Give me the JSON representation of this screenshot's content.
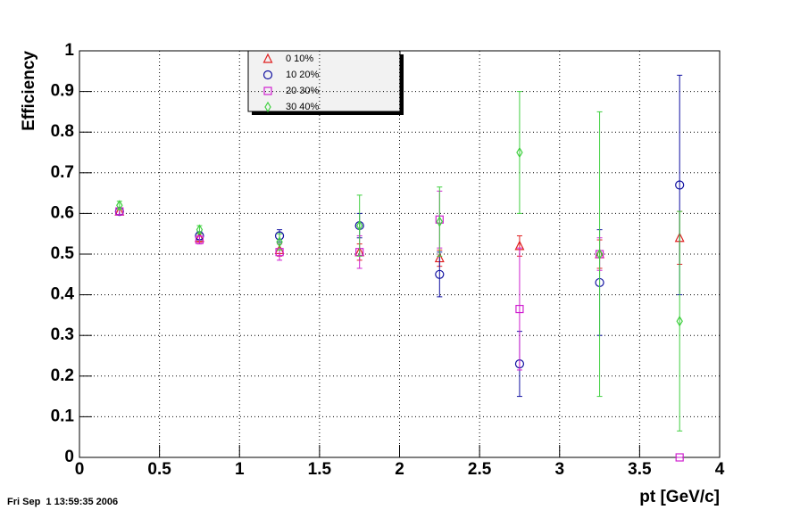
{
  "chart_data": {
    "type": "scatter",
    "x_label": "pt [GeV/c]",
    "y_label": "Efficiency",
    "footer": "Fri Sep  1 13:59:35 2006",
    "x": [
      0.25,
      0.75,
      1.25,
      1.75,
      2.25,
      2.75,
      3.25,
      3.75
    ],
    "xlim": [
      0,
      4
    ],
    "xticks": [
      0,
      0.5,
      1,
      1.5,
      2,
      2.5,
      3,
      3.5,
      4
    ],
    "ylim": [
      0,
      1
    ],
    "yticks": [
      0,
      0.1,
      0.2,
      0.3,
      0.4,
      0.5,
      0.6,
      0.7,
      0.8,
      0.9,
      1
    ],
    "grid": true,
    "legend": "top-left",
    "series": [
      {
        "name": "0  10%",
        "color": "#e02020",
        "marker": "triangle",
        "values": [
          0.605,
          0.54,
          0.51,
          0.505,
          0.49,
          0.52,
          0.5,
          0.54
        ],
        "errors": [
          0.008,
          0.01,
          0.015,
          0.02,
          0.02,
          0.025,
          0.035,
          0.065
        ]
      },
      {
        "name": "10  20%",
        "color": "#1010a0",
        "marker": "circle",
        "values": [
          0.605,
          0.545,
          0.545,
          0.57,
          0.45,
          0.23,
          0.43,
          0.67
        ],
        "errors": [
          0.008,
          0.01,
          0.015,
          0.03,
          0.055,
          0.08,
          0.13,
          0.27
        ]
      },
      {
        "name": "20  30%",
        "color": "#d020d0",
        "marker": "square",
        "values": [
          0.605,
          0.535,
          0.505,
          0.505,
          0.585,
          0.365,
          0.5,
          0.0
        ],
        "errors": [
          0.008,
          0.01,
          0.02,
          0.04,
          0.07,
          0.15,
          0.04,
          0.0
        ]
      },
      {
        "name": "30  40%",
        "color": "#40d040",
        "marker": "diamond",
        "values": [
          0.62,
          0.56,
          0.53,
          0.57,
          0.58,
          0.75,
          0.5,
          0.335
        ],
        "errors": [
          0.01,
          0.01,
          0.02,
          0.075,
          0.085,
          0.15,
          0.35,
          0.27
        ]
      }
    ]
  }
}
